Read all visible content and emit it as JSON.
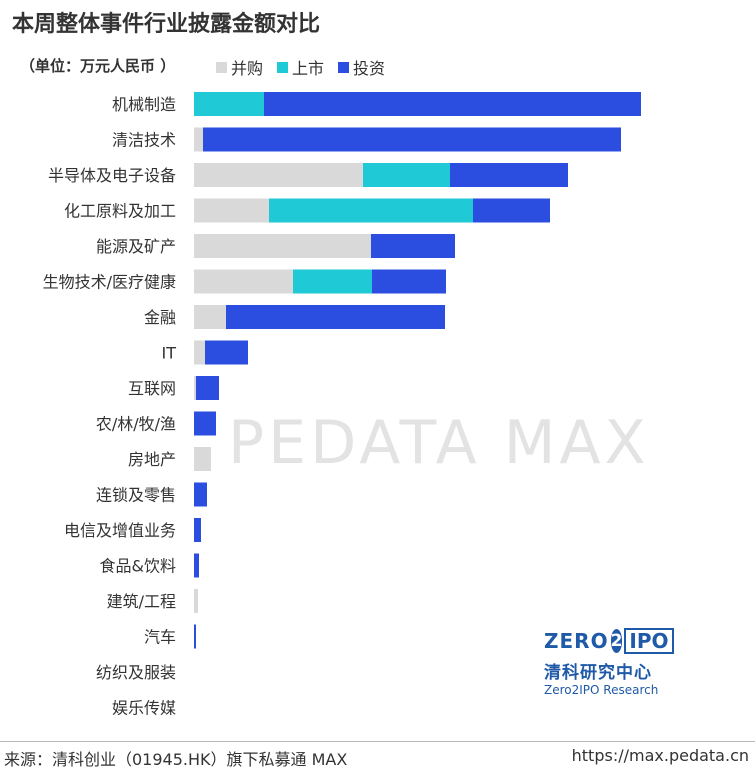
{
  "header": {
    "title": "本周整体事件行业披露金额对比",
    "unit": "（单位：万元人民币 ）"
  },
  "colors": {
    "ma": "#d9d9d9",
    "ipo": "#1fcad6",
    "invest": "#2b4de0"
  },
  "chart_data": {
    "type": "bar",
    "orientation": "horizontal",
    "stacked": true,
    "categories": [
      "机械制造",
      "清洁技术",
      "半导体及电子设备",
      "化工原料及加工",
      "能源及矿产",
      "生物技术/医疗健康",
      "金融",
      "IT",
      "互联网",
      "农/林/牧/渔",
      "房地产",
      "连锁及零售",
      "电信及增值业务",
      "食品&饮料",
      "建筑/工程",
      "汽车",
      "纺织及服装",
      "娱乐传媒"
    ],
    "series": [
      {
        "name": "并购",
        "values": [
          0,
          9,
          169,
          75,
          177,
          99,
          32,
          11,
          2,
          0,
          17,
          0,
          0,
          0,
          4,
          0,
          0,
          0
        ]
      },
      {
        "name": "上市",
        "values": [
          70,
          0,
          87,
          204,
          0,
          79,
          0,
          0,
          0,
          0,
          0,
          0,
          0,
          0,
          0,
          0,
          0,
          0
        ]
      },
      {
        "name": "投资",
        "values": [
          377,
          418,
          118,
          77,
          84,
          74,
          219,
          43,
          23,
          22,
          0,
          13,
          7,
          5,
          0,
          2,
          0,
          0
        ]
      }
    ],
    "legend_position": "top",
    "grid": false
  },
  "watermark": "PEDATA MAX",
  "logo": {
    "zero": "ZERO",
    "two": "2",
    "ipo": "IPO",
    "cn": "清科研究中心",
    "en": "Zero2IPO Research"
  },
  "footer": {
    "source": "来源：清科创业（01945.HK）旗下私募通 MAX",
    "url": "https://max.pedata.cn"
  }
}
